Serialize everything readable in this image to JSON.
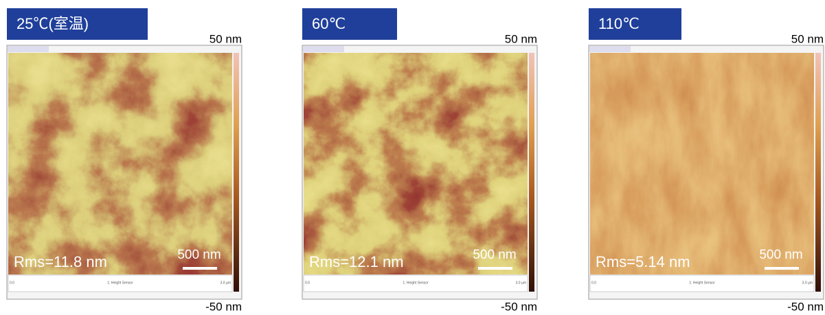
{
  "panels": [
    {
      "label": "25℃(室温)",
      "scale_top": "50 nm",
      "scale_bottom": "-50 nm",
      "rms": "Rms=11.8 nm",
      "scale_bar": "500 nm",
      "axis_start": "0.0",
      "channel": "1: Height Sensor",
      "axis_end": "3.0 µm"
    },
    {
      "label": "60℃",
      "scale_top": "50 nm",
      "scale_bottom": "-50 nm",
      "rms": "Rms=12.1 nm",
      "scale_bar": "500 nm",
      "axis_start": "0.0",
      "channel": "1: Height Sensor",
      "axis_end": "3.0 µm"
    },
    {
      "label": "110℃",
      "scale_top": "50 nm",
      "scale_bottom": "-50 nm",
      "rms": "Rms=5.14 nm",
      "scale_bar": "500 nm",
      "axis_start": "0.0",
      "channel": "1: Height Sensor",
      "axis_end": "3.0 µm"
    }
  ]
}
